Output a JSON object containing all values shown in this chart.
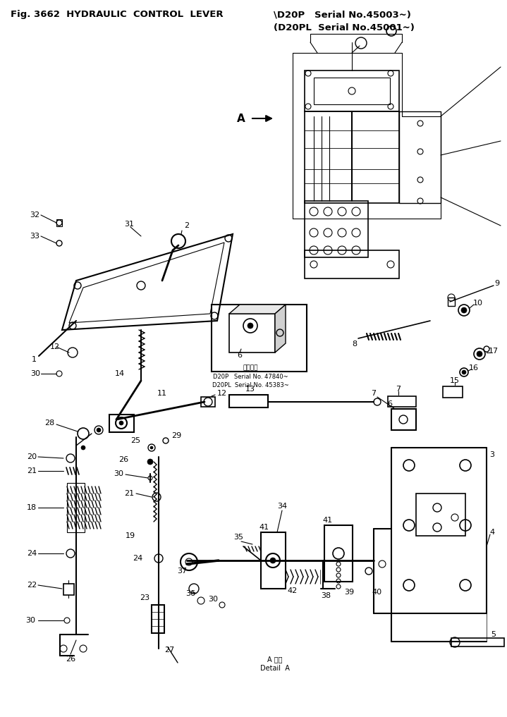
{
  "bg_color": "#ffffff",
  "fig_width": 7.19,
  "fig_height": 10.17,
  "dpi": 100,
  "title1": "Fig. 3662  HYDRAULIC  CONTROL  LEVER",
  "title2": "\\D20P   Serial No.45003~)",
  "title3": "(D20PL  Serial No.45001~)"
}
